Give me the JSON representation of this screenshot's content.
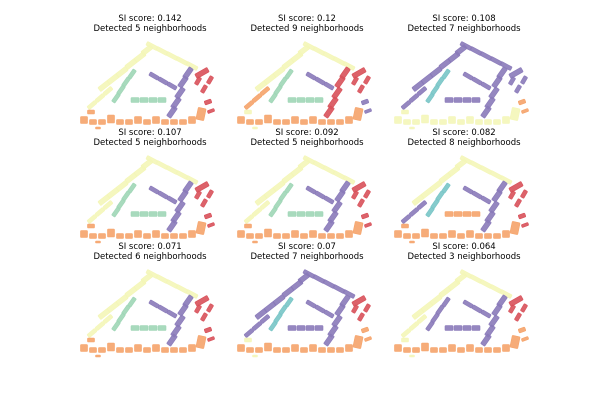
{
  "figure": {
    "panels": [
      {
        "score_label": "SI score: 0.142",
        "neigh_label": "Detected 5 neighborhoods",
        "scheme": [
          0,
          1,
          2,
          3,
          4,
          5,
          6,
          7,
          8,
          9
        ]
      },
      {
        "score_label": "SI score: 0.12",
        "neigh_label": "Detected 9 neighborhoods",
        "scheme": [
          0,
          9,
          2,
          8,
          4,
          5,
          6,
          7,
          3,
          1
        ]
      },
      {
        "score_label": "SI score: 0.108",
        "neigh_label": "Detected 7 neighborhoods",
        "scheme": [
          10,
          10,
          11,
          10,
          3,
          1,
          10,
          10,
          9,
          1
        ]
      },
      {
        "score_label": "SI score: 0.107",
        "neigh_label": "Detected 5 neighborhoods",
        "scheme": [
          0,
          1,
          2,
          3,
          4,
          5,
          6,
          7,
          8,
          9
        ]
      },
      {
        "score_label": "SI score: 0.092",
        "neigh_label": "Detected 5 neighborhoods",
        "scheme": [
          0,
          1,
          2,
          3,
          4,
          5,
          6,
          7,
          8,
          9
        ]
      },
      {
        "score_label": "SI score: 0.082",
        "neigh_label": "Detected 8 neighborhoods",
        "scheme": [
          0,
          10,
          11,
          3,
          4,
          5,
          9,
          10,
          8,
          9
        ]
      },
      {
        "score_label": "SI score: 0.071",
        "neigh_label": "Detected 6 neighborhoods",
        "scheme": [
          0,
          1,
          2,
          3,
          4,
          5,
          6,
          7,
          8,
          9
        ]
      },
      {
        "score_label": "SI score: 0.07",
        "neigh_label": "Detected 7 neighborhoods",
        "scheme": [
          10,
          10,
          11,
          10,
          4,
          5,
          10,
          10,
          9,
          1
        ]
      },
      {
        "score_label": "SI score: 0.064",
        "neigh_label": "Detected 3 neighborhoods",
        "scheme": [
          0,
          1,
          10,
          10,
          4,
          5,
          10,
          10,
          5,
          1
        ]
      }
    ],
    "palette": [
      "#f4f6b8",
      "#f4f6b8",
      "#9fd6b6",
      "#8a7ab9",
      "#d8515a",
      "#f5a36a",
      "#9fd6b6",
      "#8a7ab9",
      "#d8515a",
      "#f5a36a",
      "#8a7ab9",
      "#78c5c6"
    ]
  }
}
